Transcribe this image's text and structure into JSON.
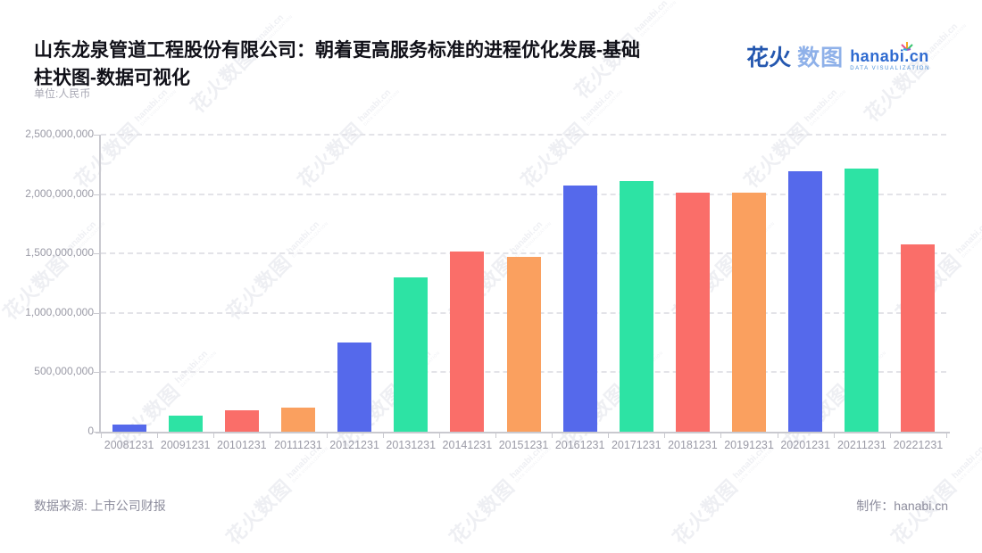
{
  "header": {
    "title_line1": "山东龙泉管道工程股份有限公司：朝着更高服务标准的进程优化发展-基础",
    "title_line2": "柱状图-数据可视化",
    "unit_label": "单位:人民币"
  },
  "logo": {
    "brand_cn_bold": "花火",
    "brand_cn_light": "数图",
    "brand_en": "hanabi.cn",
    "brand_sub": "DATA VISUALIZATION"
  },
  "watermark": {
    "text_cn": "花火数图",
    "text_en": "hanabi.cn",
    "text_sub": "DATA VISUALIZATION"
  },
  "footer": {
    "source": "数据来源: 上市公司财报",
    "credit": "制作：hanabi.cn"
  },
  "chart_data": {
    "type": "bar",
    "title": "山东龙泉管道工程股份有限公司：朝着更高服务标准的进程优化发展-基础柱状图-数据可视化",
    "unit": "人民币",
    "categories": [
      "20081231",
      "20091231",
      "20101231",
      "20111231",
      "20121231",
      "20131231",
      "20141231",
      "20151231",
      "20161231",
      "20171231",
      "20181231",
      "20191231",
      "20201231",
      "20211231",
      "20221231"
    ],
    "values": [
      60000000,
      135000000,
      180000000,
      205000000,
      750000000,
      1300000000,
      1515000000,
      1470000000,
      2070000000,
      2110000000,
      2015000000,
      2015000000,
      2190000000,
      2215000000,
      1575000000
    ],
    "bar_color_cycle": [
      "#5569EB",
      "#2DE3A4",
      "#FA6E69",
      "#FAA05F"
    ],
    "ylim": [
      0,
      2500000000
    ],
    "ytick_step": 500000000,
    "ytick_labels": [
      "0",
      "500,000,000",
      "1,000,000,000",
      "1,500,000,000",
      "2,000,000,000",
      "2,500,000,000"
    ],
    "grid": "horizontal-dashed",
    "legend": "none"
  }
}
